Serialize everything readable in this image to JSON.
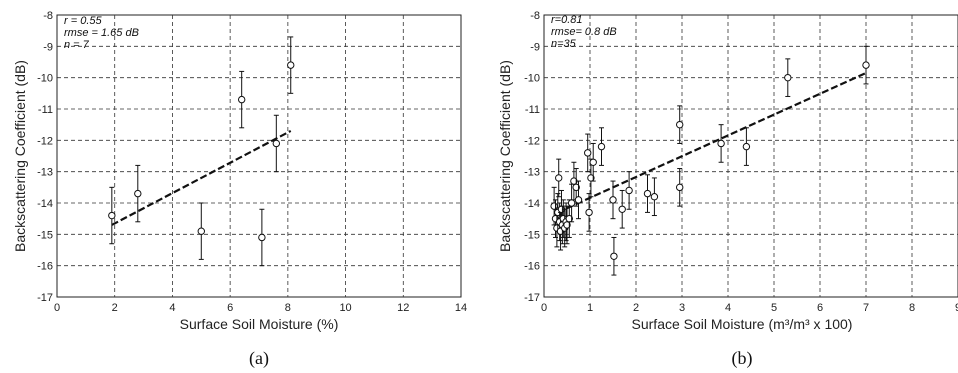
{
  "chart_data": [
    {
      "type": "scatter",
      "panel_label": "(a)",
      "xlabel": "Surface Soil Moisture (%)",
      "ylabel": "Backscattering Coefficient (dB)",
      "xlim": [
        0,
        14
      ],
      "ylim": [
        -17,
        -8
      ],
      "xticks": [
        "0",
        "2",
        "4",
        "6",
        "8",
        "10",
        "12",
        "14"
      ],
      "yticks": [
        "-17",
        "-16",
        "-15",
        "-14",
        "-13",
        "-12",
        "-11",
        "-10",
        "-9",
        "-8"
      ],
      "grid": true,
      "stats": [
        "r = 0.55",
        "rmse = 1.65 dB",
        "n = 7"
      ],
      "points": [
        {
          "x": 1.9,
          "y": -14.4,
          "err": 0.9
        },
        {
          "x": 2.8,
          "y": -13.7,
          "err": 0.9
        },
        {
          "x": 5.0,
          "y": -14.9,
          "err": 0.9
        },
        {
          "x": 6.4,
          "y": -10.7,
          "err": 0.9
        },
        {
          "x": 7.1,
          "y": -15.1,
          "err": 0.9
        },
        {
          "x": 7.6,
          "y": -12.1,
          "err": 0.9
        },
        {
          "x": 8.1,
          "y": -9.6,
          "err": 0.9
        }
      ],
      "fit": {
        "x": [
          1.9,
          8.1
        ],
        "y": [
          -14.7,
          -11.7
        ]
      }
    },
    {
      "type": "scatter",
      "panel_label": "(b)",
      "xlabel": "Surface Soil Moisture (m³/m³ x 100)",
      "ylabel": "Backscattering Coefficient (dB)",
      "xlim": [
        0,
        9
      ],
      "ylim": [
        -17,
        -8
      ],
      "xticks": [
        "0",
        "1",
        "2",
        "3",
        "4",
        "5",
        "6",
        "7",
        "8",
        "9"
      ],
      "yticks": [
        "-17",
        "-16",
        "-15",
        "-14",
        "-13",
        "-12",
        "-11",
        "-10",
        "-9",
        "-8"
      ],
      "grid": true,
      "stats": [
        "r=0.81",
        "rmse= 0.8 dB",
        "n=35"
      ],
      "points": [
        {
          "x": 0.22,
          "y": -14.1,
          "err": 0.6
        },
        {
          "x": 0.25,
          "y": -14.5,
          "err": 0.6
        },
        {
          "x": 0.28,
          "y": -14.8,
          "err": 0.6
        },
        {
          "x": 0.3,
          "y": -14.3,
          "err": 0.6
        },
        {
          "x": 0.32,
          "y": -13.2,
          "err": 0.6
        },
        {
          "x": 0.34,
          "y": -14.6,
          "err": 0.6
        },
        {
          "x": 0.36,
          "y": -14.9,
          "err": 0.6
        },
        {
          "x": 0.38,
          "y": -14.2,
          "err": 0.6
        },
        {
          "x": 0.4,
          "y": -14.7,
          "err": 0.6
        },
        {
          "x": 0.42,
          "y": -14.5,
          "err": 0.6
        },
        {
          "x": 0.45,
          "y": -14.8,
          "err": 0.6
        },
        {
          "x": 0.48,
          "y": -14.6,
          "err": 0.6
        },
        {
          "x": 0.5,
          "y": -14.7,
          "err": 0.6
        },
        {
          "x": 0.55,
          "y": -14.5,
          "err": 0.6
        },
        {
          "x": 0.6,
          "y": -14.0,
          "err": 0.6
        },
        {
          "x": 0.65,
          "y": -13.3,
          "err": 0.6
        },
        {
          "x": 0.7,
          "y": -13.5,
          "err": 0.6
        },
        {
          "x": 0.75,
          "y": -13.9,
          "err": 0.6
        },
        {
          "x": 0.95,
          "y": -12.4,
          "err": 0.6
        },
        {
          "x": 0.98,
          "y": -14.3,
          "err": 0.6
        },
        {
          "x": 1.02,
          "y": -13.2,
          "err": 0.6
        },
        {
          "x": 1.07,
          "y": -12.7,
          "err": 0.6
        },
        {
          "x": 1.25,
          "y": -12.2,
          "err": 0.6
        },
        {
          "x": 1.5,
          "y": -13.9,
          "err": 0.6
        },
        {
          "x": 1.52,
          "y": -15.7,
          "err": 0.6
        },
        {
          "x": 1.7,
          "y": -14.2,
          "err": 0.6
        },
        {
          "x": 1.85,
          "y": -13.6,
          "err": 0.6
        },
        {
          "x": 2.25,
          "y": -13.7,
          "err": 0.6
        },
        {
          "x": 2.4,
          "y": -13.8,
          "err": 0.6
        },
        {
          "x": 2.95,
          "y": -11.5,
          "err": 0.6
        },
        {
          "x": 2.95,
          "y": -13.5,
          "err": 0.6
        },
        {
          "x": 3.85,
          "y": -12.1,
          "err": 0.6
        },
        {
          "x": 4.4,
          "y": -12.2,
          "err": 0.6
        },
        {
          "x": 5.3,
          "y": -10.0,
          "err": 0.6
        },
        {
          "x": 7.0,
          "y": -9.6,
          "err": 0.6
        }
      ],
      "fit": {
        "x": [
          0.3,
          7.0
        ],
        "y": [
          -14.3,
          -9.85
        ]
      }
    }
  ],
  "captions": [
    "(a)",
    "(b)"
  ]
}
